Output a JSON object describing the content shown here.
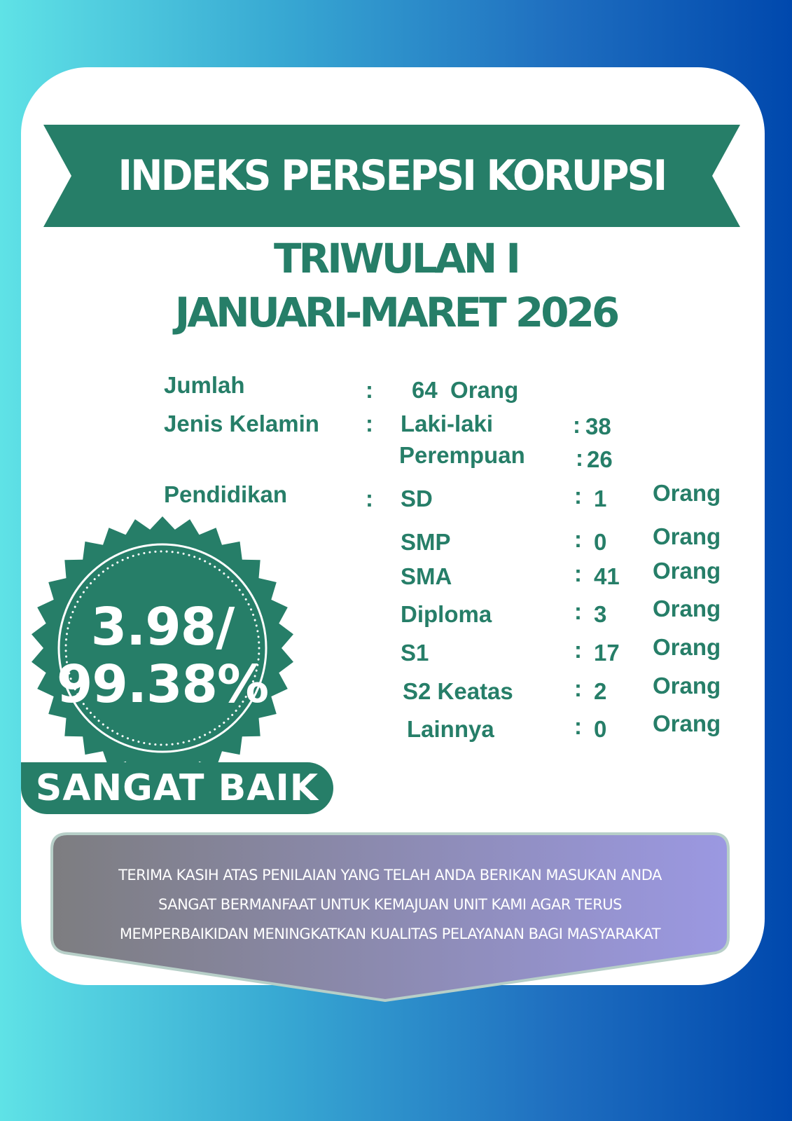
{
  "colors": {
    "primary_green": "#267e68",
    "bg_left": "#5fe2e6",
    "bg_right": "#0048ad",
    "message_left": "#7d7d80",
    "message_right": "#9b98e2"
  },
  "header": {
    "title": "INDEKS PERSEPSI KORUPSI",
    "period_line1": "TRIWULAN I",
    "period_line2": "JANUARI-MARET 2026"
  },
  "stats": {
    "jumlah": {
      "label": "Jumlah",
      "colon": ":",
      "value": "64  Orang"
    },
    "gender": {
      "label": "Jenis Kelamin",
      "colon": ":",
      "items": [
        {
          "label": "Laki-laki",
          "colon": ":",
          "value": "38"
        },
        {
          "label": "Perempuan",
          "colon": ":",
          "value": "26"
        }
      ]
    },
    "education": {
      "label": "Pendidikan",
      "colon": ":",
      "unit": "Orang",
      "items": [
        {
          "label": "SD",
          "colon": ":",
          "value": "1"
        },
        {
          "label": "SMP",
          "colon": ":",
          "value": "0"
        },
        {
          "label": "SMA",
          "colon": ":",
          "value": "41"
        },
        {
          "label": "Diploma",
          "colon": ":",
          "value": "3"
        },
        {
          "label": "S1",
          "colon": ":",
          "value": "17"
        },
        {
          "label": "S2 Keatas",
          "colon": ":",
          "value": "2"
        },
        {
          "label": "Lainnya",
          "colon": ":",
          "value": "0"
        }
      ]
    }
  },
  "score": {
    "index": "3.98/",
    "percent": "99.38%",
    "rating": "SANGAT BAIK"
  },
  "message": {
    "line1": "TERIMA KASIH ATAS PENILAIAN YANG TELAH ANDA BERIKAN MASUKAN ANDA",
    "line2": "SANGAT BERMANFAAT UNTUK KEMAJUAN UNIT KAMI AGAR TERUS",
    "line3": "MEMPERBAIKIDAN MENINGKATKAN KUALITAS PELAYANAN BAGI MASYARAKAT"
  }
}
